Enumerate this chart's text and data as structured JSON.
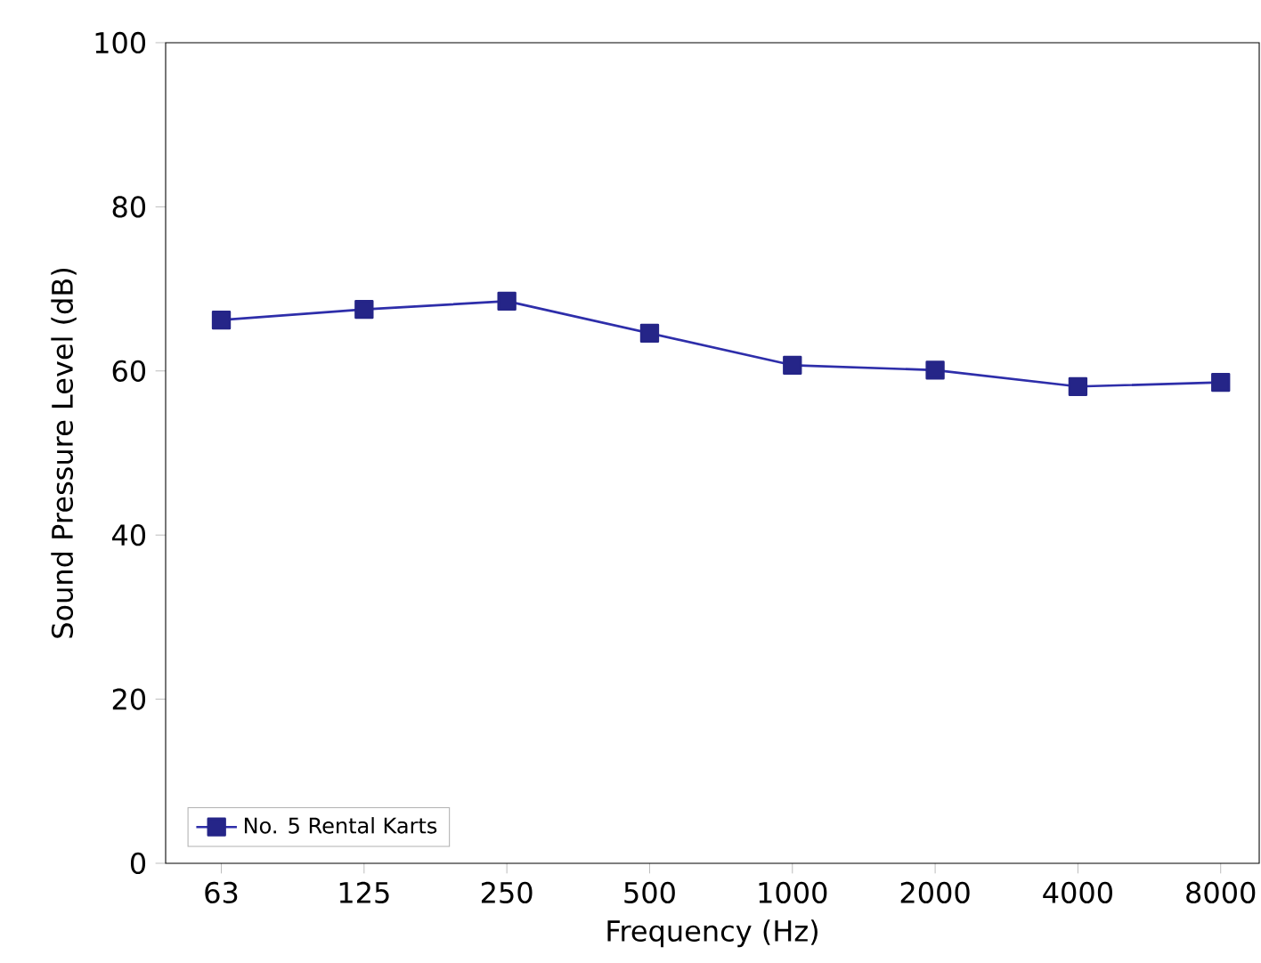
{
  "chart_data": {
    "type": "line",
    "xlabel": "Frequency (Hz)",
    "ylabel": "Sound Pressure Level (dB)",
    "categories": [
      "63",
      "125",
      "250",
      "500",
      "1000",
      "2000",
      "4000",
      "8000"
    ],
    "series": [
      {
        "name": "No. 5 Rental Karts",
        "color": "#2e2eaa",
        "values": [
          66.2,
          67.5,
          68.5,
          64.6,
          60.7,
          60.1,
          58.1,
          58.6
        ]
      }
    ],
    "ylim": [
      0,
      100
    ],
    "yticks": [
      0,
      20,
      40,
      60,
      80,
      100
    ],
    "marker": "square",
    "line_style": "solid",
    "grid": false,
    "legend": "bottom left"
  }
}
